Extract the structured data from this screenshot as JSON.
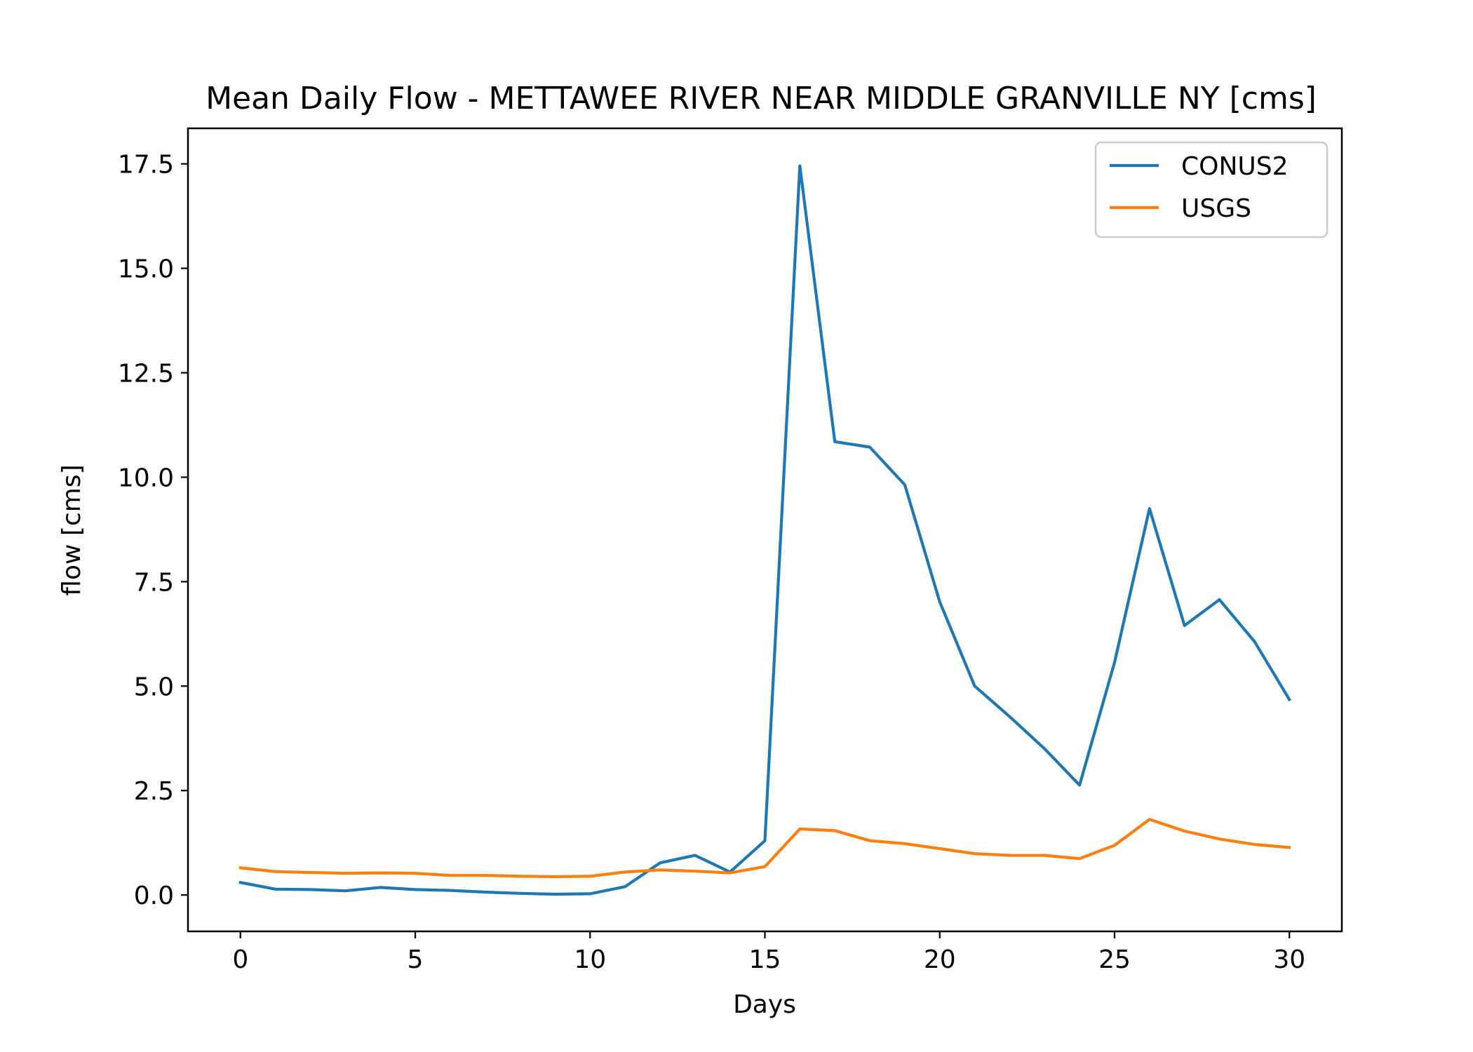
{
  "chart_data": {
    "type": "line",
    "title": "Mean Daily Flow - METTAWEE RIVER NEAR MIDDLE GRANVILLE NY [cms]",
    "xlabel": "Days",
    "ylabel": "flow [cms]",
    "xlim": [
      -1.5,
      31.5
    ],
    "ylim": [
      -0.87,
      18.35
    ],
    "xticks": [
      0,
      5,
      10,
      15,
      20,
      25,
      30
    ],
    "xtick_labels": [
      "0",
      "5",
      "10",
      "15",
      "20",
      "25",
      "30"
    ],
    "yticks": [
      0.0,
      2.5,
      5.0,
      7.5,
      10.0,
      12.5,
      15.0,
      17.5
    ],
    "ytick_labels": [
      "0.0",
      "2.5",
      "5.0",
      "7.5",
      "10.0",
      "12.5",
      "15.0",
      "17.5"
    ],
    "grid": false,
    "legend_position": "top-right",
    "x": [
      0,
      1,
      2,
      3,
      4,
      5,
      6,
      7,
      8,
      9,
      10,
      11,
      12,
      13,
      14,
      15,
      16,
      17,
      18,
      19,
      20,
      21,
      22,
      23,
      24,
      25,
      26,
      27,
      28,
      29,
      30
    ],
    "series": [
      {
        "name": "CONUS2",
        "color": "#1f77b4",
        "values": [
          0.3,
          0.14,
          0.13,
          0.1,
          0.18,
          0.13,
          0.11,
          0.07,
          0.04,
          0.02,
          0.03,
          0.2,
          0.77,
          0.95,
          0.55,
          1.3,
          17.45,
          10.85,
          10.72,
          9.82,
          7.02,
          5.0,
          4.27,
          3.5,
          2.63,
          5.57,
          9.25,
          6.45,
          7.07,
          6.07,
          4.68
        ]
      },
      {
        "name": "USGS",
        "color": "#ff7f0e",
        "values": [
          0.65,
          0.56,
          0.54,
          0.52,
          0.53,
          0.52,
          0.47,
          0.47,
          0.45,
          0.44,
          0.45,
          0.55,
          0.6,
          0.57,
          0.53,
          0.68,
          1.58,
          1.54,
          1.3,
          1.23,
          1.11,
          0.99,
          0.95,
          0.95,
          0.87,
          1.19,
          1.81,
          1.53,
          1.34,
          1.21,
          1.14
        ]
      }
    ]
  }
}
